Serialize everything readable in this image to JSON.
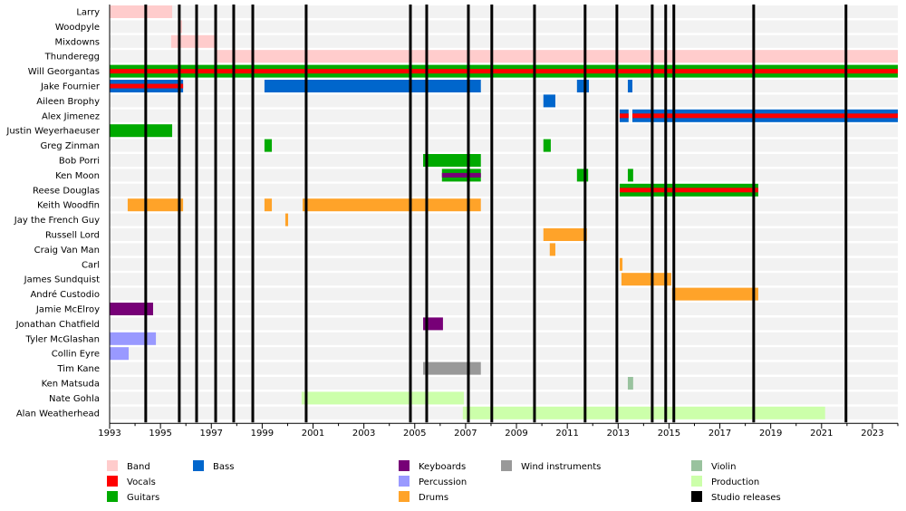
{
  "chart_data": {
    "type": "timeline",
    "xlim": [
      1993,
      2024
    ],
    "x_ticks": [
      1993,
      1995,
      1997,
      1999,
      2001,
      2003,
      2005,
      2007,
      2009,
      2011,
      2013,
      2015,
      2017,
      2019,
      2021,
      2023
    ],
    "colors": {
      "Band": "#ffcccc",
      "Vocals": "#ff0000",
      "Guitars": "#00aa00",
      "Bass": "#0066cc",
      "Keyboards": "#770077",
      "Percussion": "#9999ff",
      "Drums": "#ffa329",
      "Wind instruments": "#999999",
      "Violin": "#99c29e",
      "Production": "#ccffaa",
      "Studio releases": "#000000"
    },
    "legend": [
      {
        "label": "Band",
        "col": 0,
        "row": 0
      },
      {
        "label": "Vocals",
        "col": 0,
        "row": 1
      },
      {
        "label": "Guitars",
        "col": 0,
        "row": 2
      },
      {
        "label": "Bass",
        "col": 1,
        "row": 0
      },
      {
        "label": "Keyboards",
        "col": 2,
        "row": 0
      },
      {
        "label": "Percussion",
        "col": 2,
        "row": 1
      },
      {
        "label": "Drums",
        "col": 2,
        "row": 2
      },
      {
        "label": "Wind instruments",
        "col": 3,
        "row": 0
      },
      {
        "label": "Violin",
        "col": 4,
        "row": 0
      },
      {
        "label": "Production",
        "col": 4,
        "row": 1
      },
      {
        "label": "Studio releases",
        "col": 4,
        "row": 2
      }
    ],
    "studio_releases": [
      1994.42,
      1995.74,
      1996.42,
      1997.17,
      1997.88,
      1998.63,
      2000.73,
      2004.83,
      2005.47,
      2007.11,
      2008.03,
      2009.71,
      2011.7,
      2012.95,
      2014.34,
      2014.87,
      2015.19,
      2018.33,
      2021.96
    ],
    "rows": [
      {
        "name": "Larry",
        "bars": [
          {
            "role": "Band",
            "from": 1993,
            "to": 1995.46
          }
        ]
      },
      {
        "name": "Woodpyle",
        "bars": [
          {
            "role": "Band",
            "from": 1995.74,
            "to": 1995.85
          }
        ]
      },
      {
        "name": "Mixdowns",
        "bars": [
          {
            "role": "Band",
            "from": 1995.42,
            "to": 1997.17
          }
        ]
      },
      {
        "name": "Thunderegg",
        "bars": [
          {
            "role": "Band",
            "from": 1997.17,
            "to": 2024
          }
        ]
      },
      {
        "name": "Will Georgantas",
        "bars": [
          {
            "role": "Guitars",
            "from": 1993,
            "to": 2024,
            "stripe": "Vocals"
          }
        ]
      },
      {
        "name": "Jake Fournier",
        "bars": [
          {
            "role": "Bass",
            "from": 1993,
            "to": 1995.89,
            "stripe": "Vocals"
          },
          {
            "role": "Bass",
            "from": 1999.09,
            "to": 2007.6
          },
          {
            "role": "Bass",
            "from": 2011.38,
            "to": 2011.85
          },
          {
            "role": "Bass",
            "from": 2013.38,
            "to": 2013.56
          }
        ]
      },
      {
        "name": "Aileen Brophy",
        "bars": [
          {
            "role": "Bass",
            "from": 2010.06,
            "to": 2010.53
          }
        ]
      },
      {
        "name": "Alex Jimenez",
        "bars": [
          {
            "role": "Bass",
            "from": 2013.06,
            "to": 2013.41,
            "stripe": "Vocals"
          },
          {
            "role": "Bass",
            "from": 2013.56,
            "to": 2024,
            "stripe": "Vocals"
          }
        ]
      },
      {
        "name": "Justin Weyerhaeuser",
        "bars": [
          {
            "role": "Guitars",
            "from": 1993,
            "to": 1995.46
          }
        ]
      },
      {
        "name": "Greg Zinman",
        "bars": [
          {
            "role": "Guitars",
            "from": 1999.09,
            "to": 1999.38
          },
          {
            "role": "Guitars",
            "from": 2010.06,
            "to": 2010.35
          }
        ]
      },
      {
        "name": "Bob Porri",
        "bars": [
          {
            "role": "Guitars",
            "from": 2005.33,
            "to": 2007.6
          }
        ]
      },
      {
        "name": "Ken Moon",
        "bars": [
          {
            "role": "Guitars",
            "from": 2006.07,
            "to": 2007.6,
            "stripe": "Keyboards"
          },
          {
            "role": "Guitars",
            "from": 2011.38,
            "to": 2011.82
          },
          {
            "role": "Guitars",
            "from": 2013.38,
            "to": 2013.59
          }
        ]
      },
      {
        "name": "Reese Douglas",
        "bars": [
          {
            "role": "Guitars",
            "from": 2013.06,
            "to": 2018.51,
            "stripe": "Vocals"
          }
        ]
      },
      {
        "name": "Keith Woodfin",
        "bars": [
          {
            "role": "Drums",
            "from": 1993.71,
            "to": 1995.89
          },
          {
            "role": "Drums",
            "from": 1999.09,
            "to": 1999.38
          },
          {
            "role": "Drums",
            "from": 2000.59,
            "to": 2007.6
          }
        ]
      },
      {
        "name": "Jay the French Guy",
        "bars": [
          {
            "role": "Drums",
            "from": 1999.91,
            "to": 2000.02
          }
        ]
      },
      {
        "name": "Russell Lord",
        "bars": [
          {
            "role": "Drums",
            "from": 2010.06,
            "to": 2011.77
          }
        ]
      },
      {
        "name": "Craig Van Man",
        "bars": [
          {
            "role": "Drums",
            "from": 2010.31,
            "to": 2010.53
          }
        ]
      },
      {
        "name": "Carl",
        "bars": [
          {
            "role": "Drums",
            "from": 2013.06,
            "to": 2013.17
          }
        ]
      },
      {
        "name": "James Sundquist",
        "bars": [
          {
            "role": "Drums",
            "from": 2013.13,
            "to": 2015.09
          }
        ]
      },
      {
        "name": "André Custodio",
        "bars": [
          {
            "role": "Drums",
            "from": 2015.12,
            "to": 2018.51
          }
        ]
      },
      {
        "name": "Jamie McElroy",
        "bars": [
          {
            "role": "Keyboards",
            "from": 1993,
            "to": 1994.71
          }
        ]
      },
      {
        "name": "Jonathan Chatfield",
        "bars": [
          {
            "role": "Keyboards",
            "from": 2005.33,
            "to": 2006.11
          }
        ]
      },
      {
        "name": "Tyler McGlashan",
        "bars": [
          {
            "role": "Percussion",
            "from": 1993,
            "to": 1994.82
          }
        ]
      },
      {
        "name": "Collin Eyre",
        "bars": [
          {
            "role": "Percussion",
            "from": 1993,
            "to": 1993.75
          }
        ]
      },
      {
        "name": "Tim Kane",
        "bars": [
          {
            "role": "Wind instruments",
            "from": 2005.33,
            "to": 2007.6
          }
        ]
      },
      {
        "name": "Ken Matsuda",
        "bars": [
          {
            "role": "Violin",
            "from": 2013.38,
            "to": 2013.59
          }
        ]
      },
      {
        "name": "Nate Gohla",
        "bars": [
          {
            "role": "Production",
            "from": 2000.55,
            "to": 2006.93
          }
        ]
      },
      {
        "name": "Alan Weatherhead",
        "bars": [
          {
            "role": "Production",
            "from": 2006.89,
            "to": 2021.14
          }
        ]
      }
    ]
  }
}
